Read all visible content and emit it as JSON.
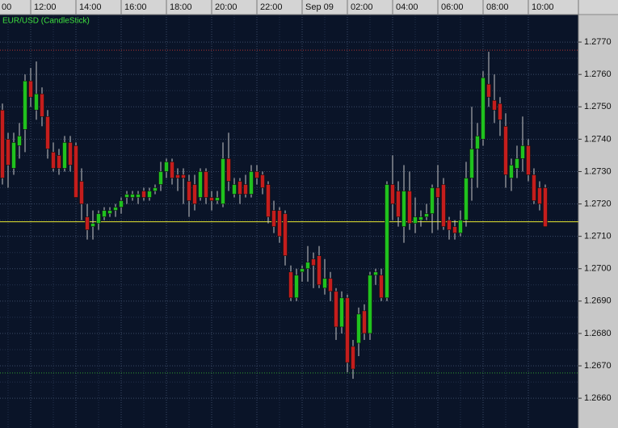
{
  "chart_data": {
    "type": "candlestick",
    "title": "EUR/USD (CandleStick)",
    "open": [
      1.2749,
      1.274,
      1.2731,
      1.2738,
      1.2743,
      1.2758,
      1.2749,
      1.2754,
      1.2747,
      1.2736,
      1.2735,
      1.2731,
      1.2739,
      1.2738,
      1.2727,
      1.2716,
      1.2713,
      1.2714,
      1.2716,
      1.2717,
      1.2718,
      1.2719,
      1.2722,
      1.2722,
      1.2722,
      1.2724,
      1.2722,
      1.2724,
      1.2726,
      1.273,
      1.2733,
      1.2729,
      1.2729,
      1.2727,
      1.2726,
      1.2722,
      1.273,
      1.2722,
      1.2721,
      1.272,
      1.2734,
      1.2723,
      1.2727,
      1.2726,
      1.2723,
      1.273,
      1.2729,
      1.2726,
      1.2718,
      1.2718,
      1.2717,
      1.2699,
      1.2691,
      1.2699,
      1.27,
      1.2703,
      1.2704,
      1.2694,
      1.2697,
      1.2693,
      1.2682,
      1.2691,
      1.2676,
      1.2677,
      1.2687,
      1.268,
      1.2698,
      1.2698,
      1.2691,
      1.2726,
      1.2724,
      1.2713,
      1.2724,
      1.2714,
      1.2715,
      1.2716,
      1.2717,
      1.2725,
      1.2726,
      1.2715,
      1.2713,
      1.2711,
      1.2715,
      1.2728,
      1.2737,
      1.274,
      1.2757,
      1.2752,
      1.2751,
      1.2744,
      1.2728,
      1.2731,
      1.2734,
      1.2738,
      1.2729,
      1.2725,
      1.2725
    ],
    "high": [
      1.2751,
      1.2742,
      1.2742,
      1.2745,
      1.276,
      1.2762,
      1.2764,
      1.2756,
      1.2749,
      1.2739,
      1.2737,
      1.2741,
      1.2741,
      1.2739,
      1.2731,
      1.272,
      1.2718,
      1.2718,
      1.2719,
      1.2719,
      1.272,
      1.2722,
      1.2724,
      1.2724,
      1.2724,
      1.2725,
      1.2725,
      1.2726,
      1.2733,
      1.2734,
      1.2734,
      1.2731,
      1.2731,
      1.2729,
      1.2729,
      1.2731,
      1.2731,
      1.2724,
      1.2724,
      1.2739,
      1.2742,
      1.2728,
      1.2728,
      1.2729,
      1.2732,
      1.2732,
      1.273,
      1.2727,
      1.2721,
      1.2719,
      1.2718,
      1.2701,
      1.27,
      1.2701,
      1.2707,
      1.2705,
      1.2707,
      1.2703,
      1.2699,
      1.2694,
      1.2693,
      1.2692,
      1.2678,
      1.2688,
      1.2689,
      1.2699,
      1.27,
      1.27,
      1.2727,
      1.2735,
      1.2727,
      1.2732,
      1.273,
      1.2722,
      1.2718,
      1.272,
      1.2726,
      1.2732,
      1.2728,
      1.2716,
      1.2715,
      1.2718,
      1.2733,
      1.275,
      1.2745,
      1.2761,
      1.2767,
      1.276,
      1.2753,
      1.2748,
      1.2734,
      1.2738,
      1.2747,
      1.274,
      1.2731,
      1.2727,
      1.2726
    ],
    "low": [
      1.2726,
      1.2725,
      1.2729,
      1.2734,
      1.2736,
      1.275,
      1.2746,
      1.2744,
      1.2734,
      1.273,
      1.2729,
      1.273,
      1.273,
      1.2722,
      1.2715,
      1.2709,
      1.2709,
      1.2712,
      1.2715,
      1.2716,
      1.2716,
      1.2717,
      1.272,
      1.2721,
      1.272,
      1.2721,
      1.2721,
      1.2723,
      1.2724,
      1.2728,
      1.2726,
      1.2724,
      1.272,
      1.2716,
      1.2718,
      1.2721,
      1.272,
      1.2718,
      1.272,
      1.2719,
      1.2724,
      1.2722,
      1.272,
      1.2722,
      1.2722,
      1.2726,
      1.2723,
      1.2714,
      1.2711,
      1.2708,
      1.2701,
      1.269,
      1.269,
      1.2696,
      1.2696,
      1.2694,
      1.2694,
      1.2692,
      1.269,
      1.2678,
      1.268,
      1.2668,
      1.2666,
      1.2673,
      1.2678,
      1.2678,
      1.2695,
      1.269,
      1.269,
      1.2715,
      1.2713,
      1.2708,
      1.2712,
      1.2711,
      1.2713,
      1.2715,
      1.2711,
      1.2712,
      1.2712,
      1.2709,
      1.2709,
      1.271,
      1.2713,
      1.2721,
      1.2725,
      1.2738,
      1.275,
      1.2745,
      1.2741,
      1.2725,
      1.2724,
      1.2728,
      1.273,
      1.2727,
      1.272,
      1.2718,
      1.2713
    ],
    "close": [
      1.2728,
      1.2732,
      1.2739,
      1.2741,
      1.2758,
      1.2753,
      1.2754,
      1.2747,
      1.2737,
      1.2731,
      1.2731,
      1.2739,
      1.2732,
      1.2722,
      1.272,
      1.2712,
      1.2714,
      1.2717,
      1.2718,
      1.2718,
      1.2719,
      1.2721,
      1.2723,
      1.2723,
      1.2723,
      1.2722,
      1.2724,
      1.2725,
      1.273,
      1.2733,
      1.2728,
      1.2728,
      1.2728,
      1.2721,
      1.272,
      1.273,
      1.2722,
      1.2721,
      1.2722,
      1.2734,
      1.2727,
      1.2726,
      1.2723,
      1.2723,
      1.273,
      1.2728,
      1.2725,
      1.2716,
      1.2713,
      1.271,
      1.2704,
      1.2691,
      1.2698,
      1.27,
      1.2702,
      1.2701,
      1.2695,
      1.2697,
      1.2693,
      1.2682,
      1.2691,
      1.2671,
      1.2669,
      1.2686,
      1.268,
      1.2698,
      1.2699,
      1.2691,
      1.2726,
      1.272,
      1.2716,
      1.2724,
      1.2714,
      1.2716,
      1.2716,
      1.2717,
      1.2725,
      1.2722,
      1.2713,
      1.2712,
      1.2711,
      1.2715,
      1.2728,
      1.2737,
      1.2741,
      1.2759,
      1.2753,
      1.2749,
      1.2746,
      1.2729,
      1.2732,
      1.2734,
      1.2738,
      1.2729,
      1.2721,
      1.272,
      1.2713
    ],
    "up_color": "#1fc21f",
    "down_color": "#c41d1d",
    "xlim": [
      -0.43,
      101.86
    ],
    "xticks": [
      {
        "value": -3,
        "label": "00"
      },
      {
        "value": 5,
        "label": "12:00"
      },
      {
        "value": 13,
        "label": "14:00"
      },
      {
        "value": 21,
        "label": "16:00"
      },
      {
        "value": 29,
        "label": "18:00"
      },
      {
        "value": 37,
        "label": "20:00"
      },
      {
        "value": 45,
        "label": "22:00"
      },
      {
        "value": 53,
        "label": "Sep 09"
      },
      {
        "value": 61,
        "label": "02:00"
      },
      {
        "value": 69,
        "label": "04:00"
      },
      {
        "value": 77,
        "label": "06:00"
      },
      {
        "value": 85,
        "label": "08:00"
      },
      {
        "value": 93,
        "label": "10:00"
      }
    ],
    "ylim": [
      1.26508,
      1.27785
    ],
    "yticks": [
      {
        "value": 1.277,
        "label": "1.2770"
      },
      {
        "value": 1.276,
        "label": "1.2760"
      },
      {
        "value": 1.275,
        "label": "1.2750"
      },
      {
        "value": 1.274,
        "label": "1.2740"
      },
      {
        "value": 1.273,
        "label": "1.2730"
      },
      {
        "value": 1.272,
        "label": "1.2720"
      },
      {
        "value": 1.271,
        "label": "1.2710"
      },
      {
        "value": 1.27,
        "label": "1.2700"
      },
      {
        "value": 1.269,
        "label": "1.2690"
      },
      {
        "value": 1.268,
        "label": "1.2680"
      },
      {
        "value": 1.267,
        "label": "1.2670"
      },
      {
        "value": 1.266,
        "label": "1.2660"
      }
    ],
    "levels": [
      {
        "value": 1.27145,
        "color": "#e8e832",
        "style": "solid"
      },
      {
        "value": 1.27675,
        "color": "#b03030",
        "style": "dotted"
      },
      {
        "value": 1.26678,
        "color": "#2fa02f",
        "style": "dotted"
      }
    ],
    "grid": true
  }
}
